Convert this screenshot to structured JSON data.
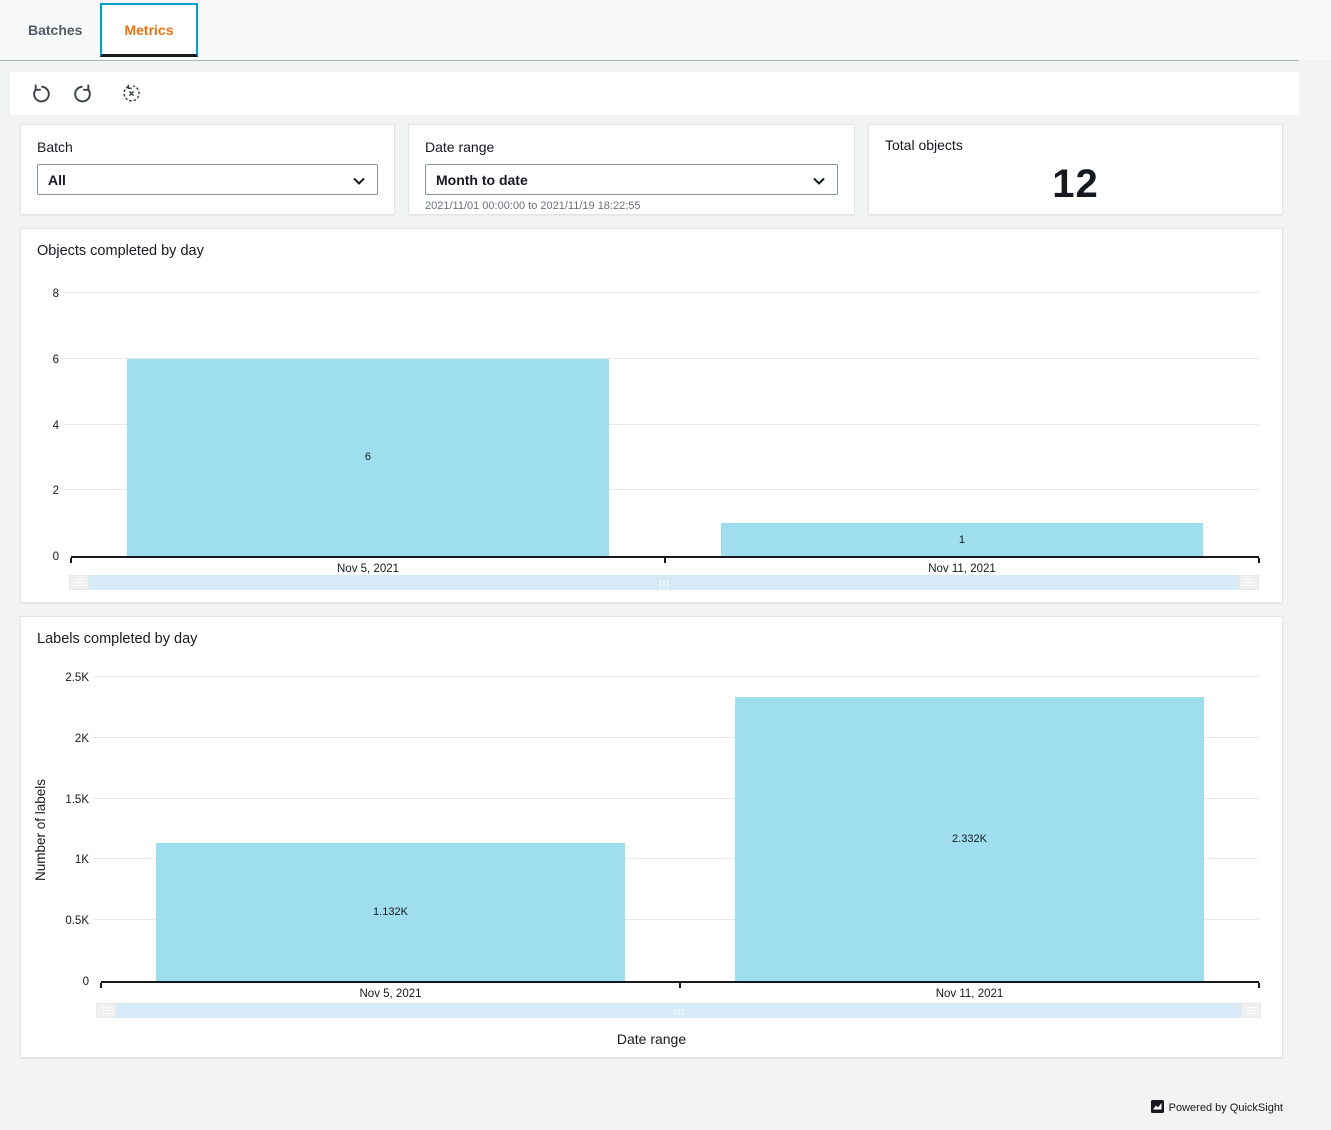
{
  "tabs": [
    {
      "label": "Batches"
    },
    {
      "label": "Metrics"
    }
  ],
  "toolbar": {
    "icons": [
      "undo-icon",
      "redo-icon",
      "reset-icon"
    ]
  },
  "filters": {
    "batch": {
      "label": "Batch",
      "value": "All"
    },
    "date_range": {
      "label": "Date range",
      "value": "Month to date",
      "detail": "2021/11/01 00:00:00 to 2021/11/19 18:22:55"
    }
  },
  "kpi": {
    "label": "Total objects",
    "value": "12"
  },
  "footer": {
    "powered_by": "Powered by QuickSight"
  },
  "colors": {
    "bar": "#9EDEEF",
    "scrollbar": "#D6EAF8",
    "accent_orange": "#EC7211",
    "accent_teal": "#00A1C9",
    "axis": "#16191F",
    "gridline": "#E9E9E9"
  },
  "chart_data": [
    {
      "type": "bar",
      "title": "Objects completed by day",
      "categories": [
        "Nov 5, 2021",
        "Nov 11, 2021"
      ],
      "values": [
        6,
        1
      ],
      "value_labels": [
        "6",
        "1"
      ],
      "xlabel": "",
      "ylabel": "",
      "ylim": [
        0,
        8
      ],
      "yticks": [
        0,
        2,
        4,
        6,
        8
      ],
      "ytick_labels": [
        "0",
        "2",
        "4",
        "6",
        "8"
      ],
      "grid": true,
      "legend": "none"
    },
    {
      "type": "bar",
      "title": "Labels completed by day",
      "categories": [
        "Nov 5, 2021",
        "Nov 11, 2021"
      ],
      "values": [
        1132,
        2332
      ],
      "value_labels": [
        "1.132K",
        "2.332K"
      ],
      "xlabel": "Date range",
      "ylabel": "Number of labels",
      "ylim": [
        0,
        2500
      ],
      "yticks": [
        0,
        500,
        1000,
        1500,
        2000,
        2500
      ],
      "ytick_labels": [
        "0",
        "0.5K",
        "1K",
        "1.5K",
        "2K",
        "2.5K"
      ],
      "grid": true,
      "legend": "none"
    }
  ]
}
